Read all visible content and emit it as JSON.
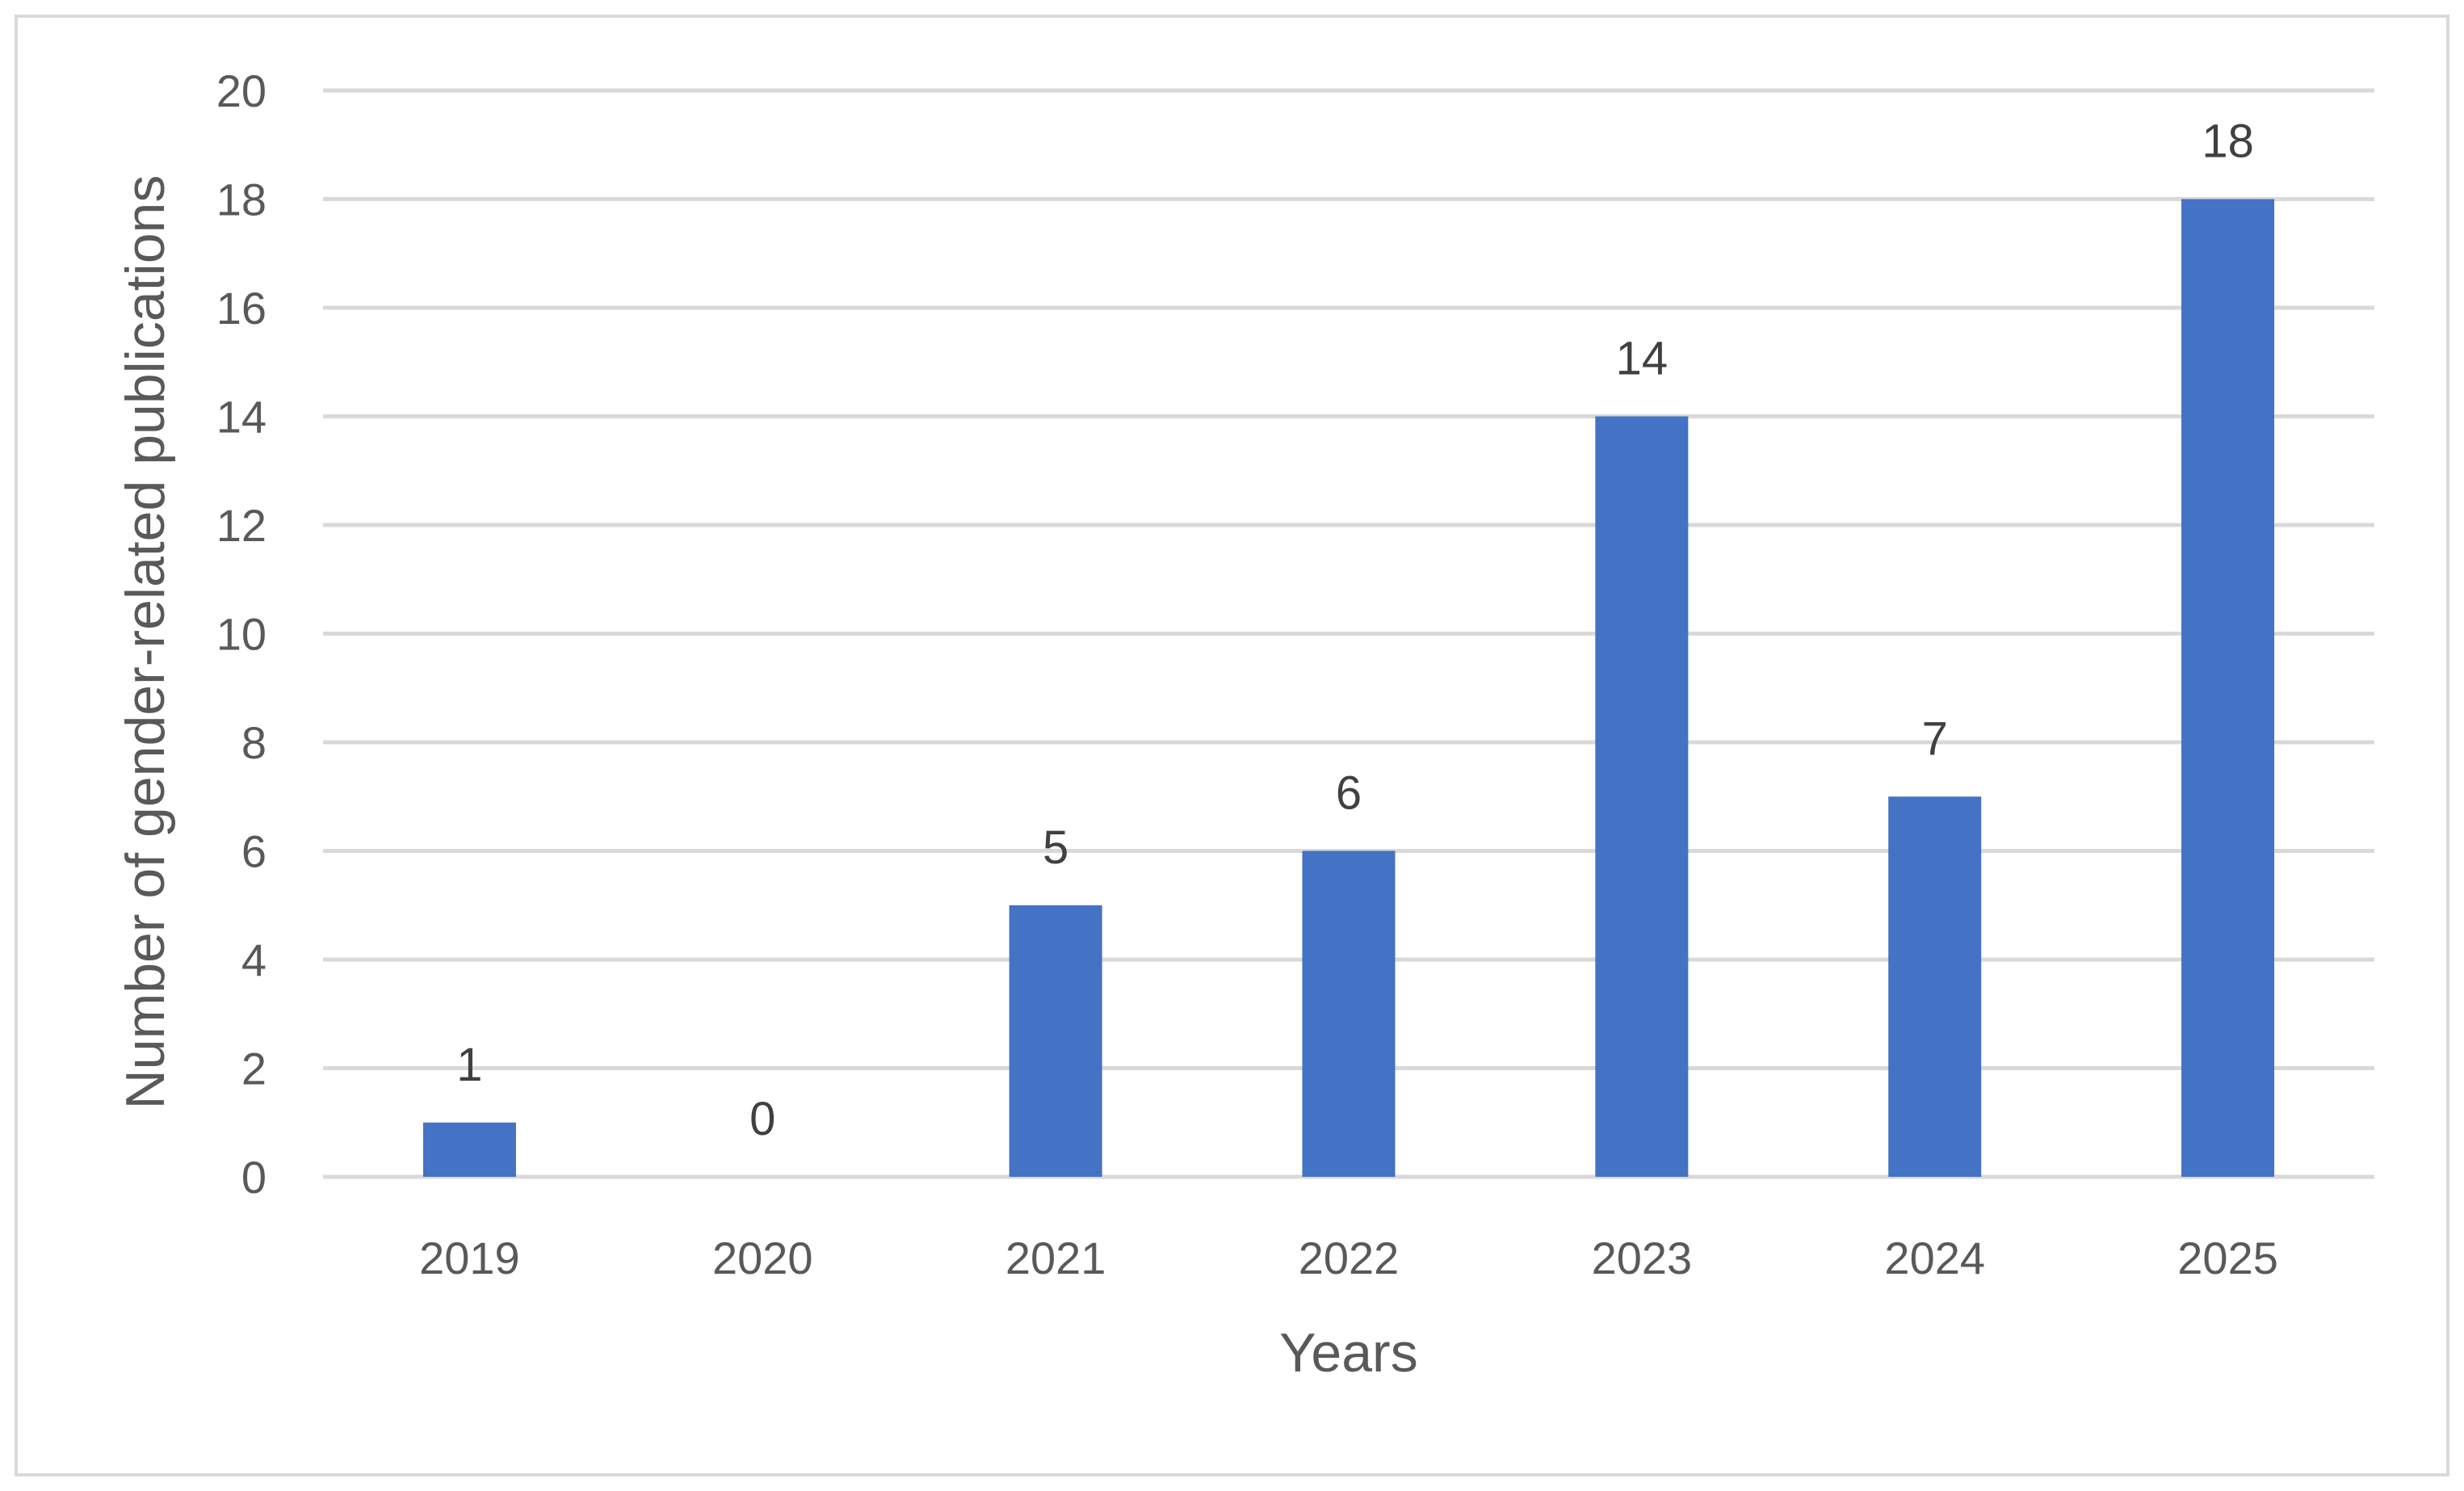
{
  "chart_data": {
    "type": "bar",
    "categories": [
      "2019",
      "2020",
      "2021",
      "2022",
      "2023",
      "2024",
      "2025"
    ],
    "values": [
      1,
      0,
      5,
      6,
      14,
      7,
      18
    ],
    "title": "",
    "xlabel": "Years",
    "ylabel": "Number of gender-related publications",
    "ylim": [
      0,
      20
    ],
    "yticks": [
      0,
      2,
      4,
      6,
      8,
      10,
      12,
      14,
      16,
      18,
      20
    ],
    "grid": true,
    "legend": "none",
    "data_labels": true,
    "colors": {
      "bar": "#4472c4",
      "gridline": "#d9d9d9",
      "tick_text": "#595959",
      "data_label_text": "#404040",
      "frame": "#d9d9d9"
    }
  }
}
